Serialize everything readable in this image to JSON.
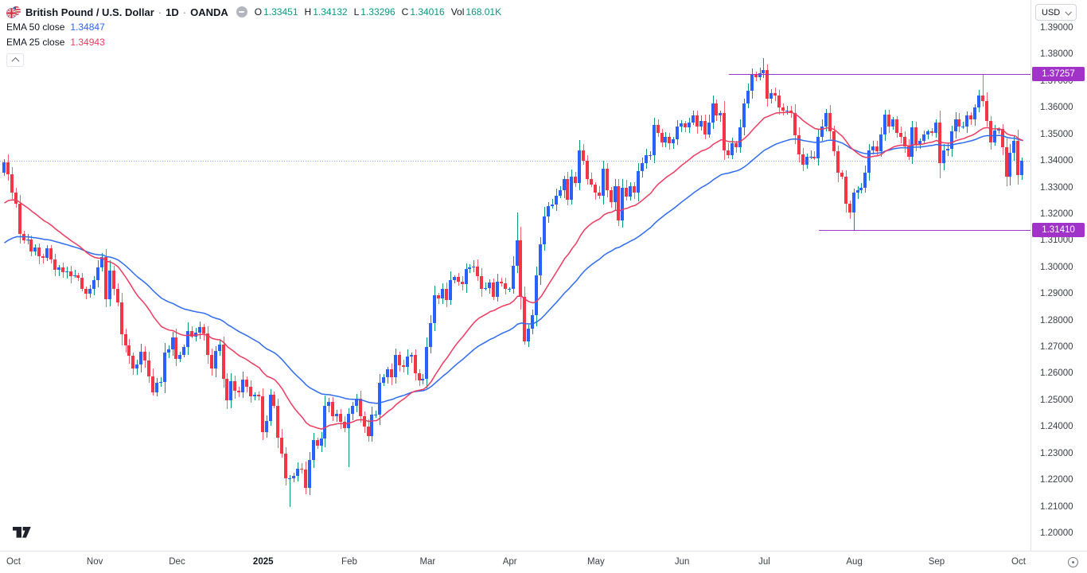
{
  "header": {
    "symbol_title": "British Pound / U.S. Dollar",
    "separator": "·",
    "timeframe": "1D",
    "exchange": "OANDA",
    "ohlc": {
      "o_label": "O",
      "o": "1.33451",
      "h_label": "H",
      "h": "1.34132",
      "l_label": "L",
      "l": "1.33296",
      "c_label": "C",
      "c": "1.34016",
      "vol_label": "Vol",
      "vol": "168.01K"
    },
    "indicators": [
      {
        "label": "EMA 50 close",
        "value": "1.34847"
      },
      {
        "label": "EMA 25 close",
        "value": "1.34943"
      }
    ]
  },
  "price_scale": {
    "currency": "USD"
  },
  "chart_data": {
    "type": "candlestick",
    "title": "British Pound / U.S. Dollar, 1D, OANDA",
    "symbol": "GBPUSD",
    "timeframe": "1D",
    "ylim": [
      1.19341,
      1.40047
    ],
    "y_axis": {
      "ticks": [
        1.39,
        1.38,
        1.37,
        1.36,
        1.35,
        1.34,
        1.33,
        1.32,
        1.31,
        1.3,
        1.29,
        1.28,
        1.27,
        1.26,
        1.25,
        1.24,
        1.23,
        1.22,
        1.21,
        1.2
      ]
    },
    "x_axis": {
      "months": [
        {
          "label": "Oct",
          "index": 0
        },
        {
          "label": "Nov",
          "index": 23
        },
        {
          "label": "Dec",
          "index": 44
        },
        {
          "label": "2025",
          "index": 66,
          "bold": true
        },
        {
          "label": "Feb",
          "index": 88
        },
        {
          "label": "Mar",
          "index": 108
        },
        {
          "label": "Apr",
          "index": 129
        },
        {
          "label": "May",
          "index": 151
        },
        {
          "label": "Jun",
          "index": 173
        },
        {
          "label": "Jul",
          "index": 194
        },
        {
          "label": "Aug",
          "index": 217
        },
        {
          "label": "Sep",
          "index": 238
        },
        {
          "label": "Oct",
          "index": 260
        }
      ]
    },
    "first_open": 1.3355,
    "closes": [
      1.3395,
      1.335,
      1.328,
      1.324,
      1.3125,
      1.31,
      1.3105,
      1.306,
      1.3075,
      1.304,
      1.3035,
      1.307,
      1.303,
      1.299,
      1.3,
      1.298,
      1.2985,
      1.2965,
      1.297,
      1.296,
      1.292,
      1.29,
      1.292,
      1.295,
      1.3,
      1.3037,
      1.288,
      1.2987,
      1.292,
      1.2867,
      1.2747,
      1.2706,
      1.2666,
      1.2618,
      1.2633,
      1.2683,
      1.265,
      1.259,
      1.253,
      1.2565,
      1.2567,
      1.268,
      1.269,
      1.2737,
      1.2655,
      1.267,
      1.27,
      1.276,
      1.274,
      1.2755,
      1.2775,
      1.275,
      1.267,
      1.262,
      1.2685,
      1.271,
      1.258,
      1.25,
      1.257,
      1.2535,
      1.253,
      1.2577,
      1.255,
      1.2516,
      1.252,
      1.2515,
      1.238,
      1.2423,
      1.252,
      1.248,
      1.236,
      1.23,
      1.2205,
      1.2205,
      1.2215,
      1.2243,
      1.224,
      1.217,
      1.2275,
      1.235,
      1.233,
      1.2355,
      1.248,
      1.2495,
      1.244,
      1.245,
      1.242,
      1.2395,
      1.245,
      1.248,
      1.2505,
      1.244,
      1.24,
      1.2365,
      1.2445,
      1.2445,
      1.2565,
      1.2585,
      1.2615,
      1.2585,
      1.267,
      1.263,
      1.2625,
      1.2665,
      1.267,
      1.26,
      1.2575,
      1.258,
      1.27,
      1.279,
      1.2895,
      1.2882,
      1.292,
      1.2878,
      1.295,
      1.2962,
      1.2945,
      1.2935,
      1.2992,
      1.3,
      1.3003,
      1.2966,
      1.2918,
      1.2922,
      1.2943,
      1.289,
      1.2945,
      1.2938,
      1.2918,
      1.292,
      1.3005,
      1.31,
      1.289,
      1.2722,
      1.277,
      1.282,
      1.297,
      1.3085,
      1.319,
      1.323,
      1.3235,
      1.327,
      1.329,
      1.333,
      1.3255,
      1.334,
      1.3317,
      1.344,
      1.34,
      1.333,
      1.331,
      1.328,
      1.327,
      1.337,
      1.329,
      1.3245,
      1.3305,
      1.3175,
      1.33,
      1.3265,
      1.3305,
      1.328,
      1.336,
      1.339,
      1.342,
      1.342,
      1.3535,
      1.3505,
      1.347,
      1.349,
      1.3465,
      1.348,
      1.353,
      1.354,
      1.3525,
      1.3545,
      1.357,
      1.353,
      1.355,
      1.35,
      1.3545,
      1.3615,
      1.357,
      1.358,
      1.344,
      1.342,
      1.3467,
      1.345,
      1.3525,
      1.3615,
      1.3665,
      1.3725,
      1.3715,
      1.373,
      1.374,
      1.3635,
      1.3655,
      1.3645,
      1.36,
      1.359,
      1.359,
      1.358,
      1.3495,
      1.3425,
      1.3385,
      1.3415,
      1.3415,
      1.341,
      1.349,
      1.353,
      1.358,
      1.351,
      1.3435,
      1.3355,
      1.334,
      1.324,
      1.3205,
      1.328,
      1.329,
      1.33,
      1.3355,
      1.344,
      1.3455,
      1.3435,
      1.35,
      1.3575,
      1.353,
      1.3555,
      1.3505,
      1.349,
      1.3455,
      1.3415,
      1.3525,
      1.346,
      1.3475,
      1.35,
      1.351,
      1.3505,
      1.3545,
      1.339,
      1.344,
      1.3445,
      1.351,
      1.3555,
      1.353,
      1.353,
      1.357,
      1.3555,
      1.36,
      1.3645,
      1.3625,
      1.355,
      1.347,
      1.3515,
      1.352,
      1.345,
      1.334,
      1.343,
      1.3475,
      1.3346,
      1.34016
    ],
    "overrides": {
      "73": {
        "l": 1.21
      },
      "88": {
        "l": 1.2249
      },
      "131": {
        "h": 1.3207
      },
      "133": {
        "l": 1.271
      },
      "157": {
        "l": 1.3155
      },
      "194": {
        "h": 1.3787
      },
      "217": {
        "l": 1.3141
      },
      "239": {
        "l": 1.3333
      },
      "250": {
        "h": 1.3726
      },
      "260": {
        "o": 1.33451,
        "h": 1.34132,
        "l": 1.33296,
        "c": 1.34016
      }
    },
    "last_candle": {
      "open": 1.33451,
      "high": 1.34132,
      "low": 1.33296,
      "close": 1.34016
    },
    "last_price_line": 1.34016,
    "levels": [
      {
        "price": 1.37257,
        "label": "1.37257",
        "start_index": 185
      },
      {
        "price": 1.3141,
        "label": "1.31410",
        "start_index": 208
      }
    ],
    "ema": [
      {
        "id": "ema50",
        "period": 50,
        "seed": 1.308
      },
      {
        "id": "ema25",
        "period": 25,
        "seed": 1.323
      }
    ],
    "colors": {
      "up_body": "#2962ff",
      "down_body": "#f23645",
      "up_wick": "#089981",
      "down_wick": "#f55f6b",
      "ema50": "#2d6bf2",
      "ema25": "#ee3a5f",
      "level": "#a233c9",
      "last_price": "rgba(41,98,255,0.55)",
      "axis_text": "#3a3e47",
      "text": "#131722",
      "teal_value": "#089981",
      "border": "#e0e3eb"
    }
  }
}
